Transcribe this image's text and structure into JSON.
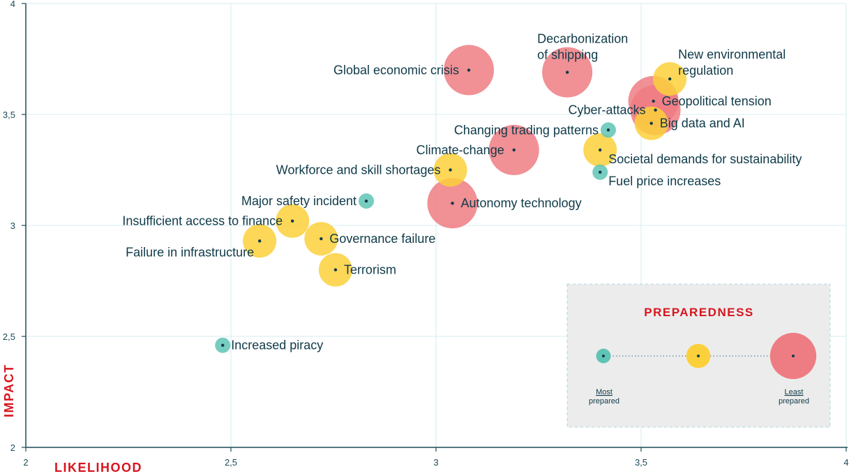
{
  "chart_data": {
    "type": "scatter",
    "subtype": "bubble",
    "xlabel": "LIKELIHOOD",
    "ylabel": "IMPACT",
    "xlim": [
      2,
      4
    ],
    "ylim": [
      2,
      4
    ],
    "xticks": [
      {
        "value": 2,
        "label": "2"
      },
      {
        "value": 2.5,
        "label": "2,5"
      },
      {
        "value": 3,
        "label": "3"
      },
      {
        "value": 3.5,
        "label": "3,5"
      },
      {
        "value": 4,
        "label": "4"
      }
    ],
    "yticks": [
      {
        "value": 2,
        "label": "2"
      },
      {
        "value": 2.5,
        "label": "2,5"
      },
      {
        "value": 3,
        "label": "3"
      },
      {
        "value": 3.5,
        "label": "3,5"
      },
      {
        "value": 4,
        "label": "4"
      }
    ],
    "preparedness_levels": [
      {
        "key": "most",
        "color": "#5fc4b5",
        "size": 1
      },
      {
        "key": "mid",
        "color": "#fcd03b",
        "size": 2
      },
      {
        "key": "least",
        "color": "#ee7d83",
        "size": 3
      }
    ],
    "points": [
      {
        "name": "Global economic crisis",
        "lines": [
          "Global economic crisis"
        ],
        "x": 3.08,
        "y": 3.7,
        "prep": "least",
        "align": "left"
      },
      {
        "name": "Decarbonization of shipping",
        "lines": [
          "Decarbonization",
          "of shipping"
        ],
        "x": 3.32,
        "y": 3.69,
        "prep": "least",
        "align": "above"
      },
      {
        "name": "New environmental regulation",
        "lines": [
          "New environmental",
          "regulation"
        ],
        "x": 3.57,
        "y": 3.66,
        "prep": "mid",
        "align": "right-up"
      },
      {
        "name": "Geopolitical tension",
        "lines": [
          "Geopolitical tension"
        ],
        "x": 3.53,
        "y": 3.56,
        "prep": "least",
        "align": "right"
      },
      {
        "name": "Cyber-attacks",
        "lines": [
          "Cyber-attacks"
        ],
        "x": 3.535,
        "y": 3.52,
        "prep": "least",
        "align": "left"
      },
      {
        "name": "Big data and AI",
        "lines": [
          "Big data and AI"
        ],
        "x": 3.525,
        "y": 3.46,
        "prep": "mid",
        "align": "right"
      },
      {
        "name": "Changing trading patterns",
        "lines": [
          "Changing trading patterns"
        ],
        "x": 3.42,
        "y": 3.43,
        "prep": "most",
        "align": "left"
      },
      {
        "name": "Climate-change",
        "lines": [
          "Climate-change"
        ],
        "x": 3.19,
        "y": 3.34,
        "prep": "least",
        "align": "left"
      },
      {
        "name": "Societal demands for sustainability",
        "lines": [
          "Societal demands for sustainability"
        ],
        "x": 3.4,
        "y": 3.34,
        "prep": "mid",
        "align": "right-low"
      },
      {
        "name": "Workforce and skill shortages",
        "lines": [
          "Workforce and skill shortages"
        ],
        "x": 3.035,
        "y": 3.25,
        "prep": "mid",
        "align": "left"
      },
      {
        "name": "Fuel price increases",
        "lines": [
          "Fuel price increases"
        ],
        "x": 3.4,
        "y": 3.24,
        "prep": "most",
        "align": "right-low"
      },
      {
        "name": "Major safety incident",
        "lines": [
          "Major safety incident"
        ],
        "x": 2.83,
        "y": 3.11,
        "prep": "most",
        "align": "left"
      },
      {
        "name": "Autonomy technology",
        "lines": [
          "Autonomy technology"
        ],
        "x": 3.04,
        "y": 3.1,
        "prep": "least",
        "align": "right"
      },
      {
        "name": "Insufficient access to finance",
        "lines": [
          "Insufficient access to finance"
        ],
        "x": 2.65,
        "y": 3.02,
        "prep": "mid",
        "align": "left"
      },
      {
        "name": "Governance failure",
        "lines": [
          "Governance failure"
        ],
        "x": 2.72,
        "y": 2.94,
        "prep": "mid",
        "align": "right"
      },
      {
        "name": "Failure in infrastructure",
        "lines": [
          "Failure in infrastructure"
        ],
        "x": 2.57,
        "y": 2.93,
        "prep": "mid",
        "align": "left-low"
      },
      {
        "name": "Terrorism",
        "lines": [
          "Terrorism"
        ],
        "x": 2.755,
        "y": 2.8,
        "prep": "mid",
        "align": "right"
      },
      {
        "name": "Increased piracy",
        "lines": [
          "Increased piracy"
        ],
        "x": 2.48,
        "y": 2.46,
        "prep": "most",
        "align": "right"
      }
    ]
  },
  "legend": {
    "title": "PREPAREDNESS",
    "most_lines": [
      "Most",
      "prepared"
    ],
    "least_lines": [
      "Least",
      "prepared"
    ]
  },
  "colors": {
    "axis": "#1d4a57",
    "grid": "#d5ecef",
    "accent": "#d7151e",
    "dot": "#0f3a48",
    "most": "#5fc4b5",
    "mid": "#fcd03b",
    "least": "#ee7d83",
    "legend_bg": "#ececec"
  }
}
